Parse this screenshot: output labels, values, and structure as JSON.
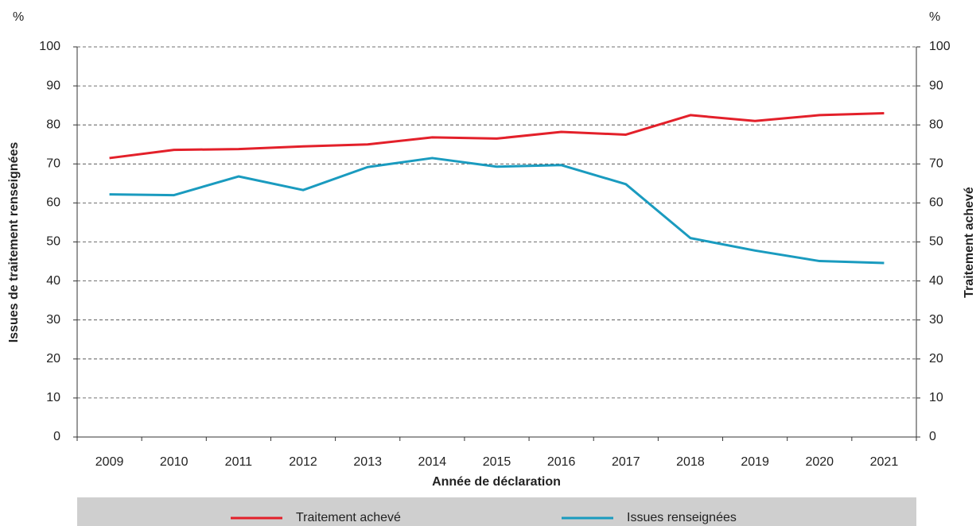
{
  "chart_data": {
    "type": "line",
    "y_label": "Issues de traitement renseignées",
    "y2_label": "Traitement achevé",
    "x_label": "Année de déclaration",
    "y_unit": "%",
    "y2_unit": "%",
    "categories": [
      "2009",
      "2010",
      "2011",
      "2012",
      "2013",
      "2014",
      "2015",
      "2016",
      "2017",
      "2018",
      "2019",
      "2020",
      "2021"
    ],
    "series": [
      {
        "name": "Traitement achevé",
        "color": "#e3202a",
        "axis": "y2",
        "values": [
          71.5,
          73.6,
          73.8,
          74.5,
          75,
          76.8,
          76.5,
          78.2,
          77.5,
          82.5,
          81,
          82.5,
          83
        ]
      },
      {
        "name": "Issues renseignées",
        "color": "#1a9bbf",
        "values": [
          62.2,
          62,
          66.8,
          63.3,
          69.2,
          71.5,
          69.3,
          69.7,
          64.8,
          51,
          47.8,
          45.1,
          44.6
        ]
      }
    ],
    "ylim": [
      0,
      100
    ],
    "yticks": [
      0,
      10,
      20,
      30,
      40,
      50,
      60,
      70,
      80,
      90,
      100
    ],
    "y2lim": [
      0,
      100
    ],
    "y2ticks": [
      0,
      10,
      20,
      30,
      40,
      50,
      60,
      70,
      80,
      90,
      100
    ],
    "grid": true
  }
}
